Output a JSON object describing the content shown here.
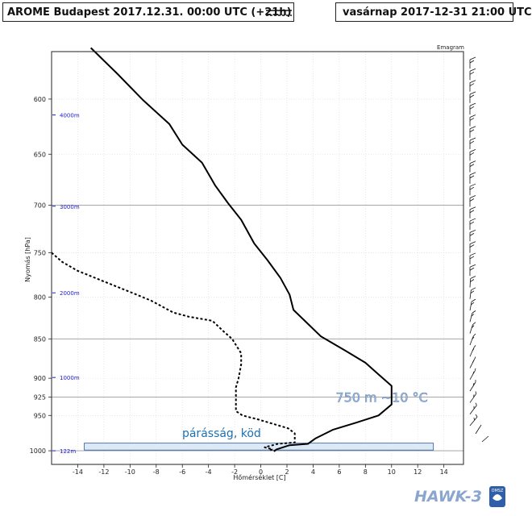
{
  "header": {
    "title_left": "AROME Budapest 2017.12.31. 00:00 UTC (+21h)",
    "title_right": "vasárnap 2017-12-31 21:00 UTC"
  },
  "chart_data": {
    "type": "line",
    "subtitle": "Emagram",
    "xlabel": "Hőmérséklet [C]",
    "ylabel": "Nyomás [hPa]",
    "xlim": [
      -16,
      15.5
    ],
    "ylim": [
      1020,
      560
    ],
    "x_ticks": [
      -14,
      -12,
      -10,
      -8,
      -6,
      -4,
      -2,
      0,
      2,
      4,
      6,
      8,
      10,
      12,
      14
    ],
    "y_ticks": [
      600,
      650,
      700,
      750,
      800,
      850,
      900,
      925,
      950,
      1000
    ],
    "grid": true,
    "horizontal_lines": [
      700,
      850,
      925,
      1000
    ],
    "height_labels": [
      {
        "p": 614,
        "label": "4000m"
      },
      {
        "p": 701,
        "label": "3000m"
      },
      {
        "p": 795,
        "label": "2000m"
      },
      {
        "p": 899,
        "label": "1000m"
      },
      {
        "p": 1000,
        "label": "122m"
      }
    ],
    "series": [
      {
        "style": "solid",
        "points": [
          [
            -13,
            557
          ],
          [
            -11,
            578
          ],
          [
            -9,
            601
          ],
          [
            -7,
            622
          ],
          [
            -6,
            641
          ],
          [
            -4.5,
            658
          ],
          [
            -3.5,
            680
          ],
          [
            -2.5,
            698
          ],
          [
            -1.5,
            715
          ],
          [
            -0.5,
            740
          ],
          [
            0.5,
            758
          ],
          [
            1.5,
            778
          ],
          [
            2.2,
            797
          ],
          [
            2.5,
            815
          ],
          [
            3.5,
            830
          ],
          [
            4.6,
            847
          ],
          [
            6.5,
            865
          ],
          [
            8,
            880
          ],
          [
            9,
            895
          ],
          [
            10,
            910
          ],
          [
            10,
            935
          ],
          [
            9,
            950
          ],
          [
            7.3,
            960
          ],
          [
            5.5,
            970
          ],
          [
            4.2,
            982
          ],
          [
            3.6,
            990
          ],
          [
            2.2,
            992
          ],
          [
            1.2,
            998
          ],
          [
            1.0,
            1001
          ]
        ]
      },
      {
        "style": "dashed",
        "points": [
          [
            -16,
            750
          ],
          [
            -15.2,
            760
          ],
          [
            -14,
            770
          ],
          [
            -12,
            782
          ],
          [
            -10,
            794
          ],
          [
            -8.4,
            804
          ],
          [
            -6.7,
            818
          ],
          [
            -5.5,
            823
          ],
          [
            -3.7,
            828
          ],
          [
            -2.9,
            840
          ],
          [
            -2.2,
            850
          ],
          [
            -1.5,
            868
          ],
          [
            -1.5,
            882
          ],
          [
            -1.7,
            900
          ],
          [
            -1.9,
            912
          ],
          [
            -1.9,
            930
          ],
          [
            -1.9,
            944
          ],
          [
            -1.4,
            950
          ],
          [
            -0.3,
            955
          ],
          [
            1.0,
            962
          ],
          [
            2.1,
            968
          ],
          [
            2.6,
            975
          ],
          [
            2.6,
            988
          ],
          [
            1.3,
            990
          ],
          [
            0.3,
            995
          ],
          [
            0.9,
            998
          ],
          [
            0.6,
            1000
          ]
        ]
      }
    ],
    "annotations": [
      {
        "text": "750 m ~10 °C",
        "x": 9.0,
        "p": 925
      },
      {
        "text": "párásság, köd",
        "x": -3.0,
        "p": 978
      }
    ],
    "fog_band": {
      "x_from": -13.5,
      "x_to": 13.2,
      "p_from": 989,
      "p_to": 999
    }
  },
  "footer": {
    "brand": "HAWK-3",
    "logo_text": "OMSZ"
  },
  "colors": {
    "axis": "#222222",
    "grid_minor": "#d8d8d8",
    "grid_major": "#9a9a9a",
    "height_label": "#1a1ad6",
    "annotation_blue": "#1f6fb0",
    "fog_fill": "#dce9f7",
    "fog_stroke": "#2a5aa0",
    "brand": "#8aa6cf"
  }
}
